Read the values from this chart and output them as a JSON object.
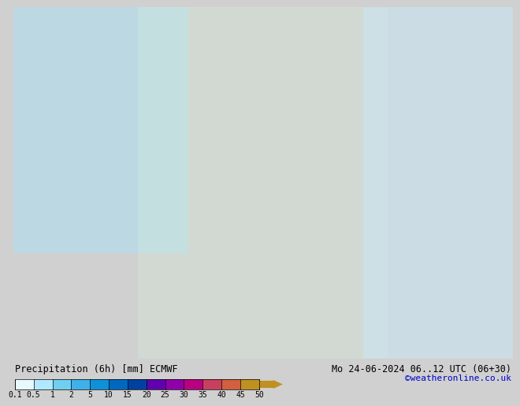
{
  "title_left": "Precipitation (6h) [mm] ECMWF",
  "title_right": "Mo 24-06-2024 06..12 UTC (06+30)",
  "credit": "©weatheronline.co.uk",
  "colorbar_values": [
    0.1,
    0.5,
    1,
    2,
    5,
    10,
    15,
    20,
    25,
    30,
    35,
    40,
    45,
    50
  ],
  "colorbar_colors": [
    "#e0f7ff",
    "#b3ecff",
    "#80d4f5",
    "#4db8f0",
    "#1a9de0",
    "#006ec0",
    "#0044a0",
    "#a000c0",
    "#c000a0",
    "#e00080",
    "#e04080",
    "#e06060",
    "#d09040",
    "#c0b000"
  ],
  "bg_color": "#d8d8d8",
  "map_bg": "#e8e8e8",
  "font_color": "#000000",
  "bottom_bar_height": 0.08,
  "label_fontsize": 8.5,
  "credit_fontsize": 8,
  "colorbar_label_values": [
    "0.1",
    "0.5",
    "1",
    "2",
    "5",
    "10",
    "15",
    "20",
    "25",
    "30",
    "35",
    "40",
    "45",
    "50"
  ]
}
